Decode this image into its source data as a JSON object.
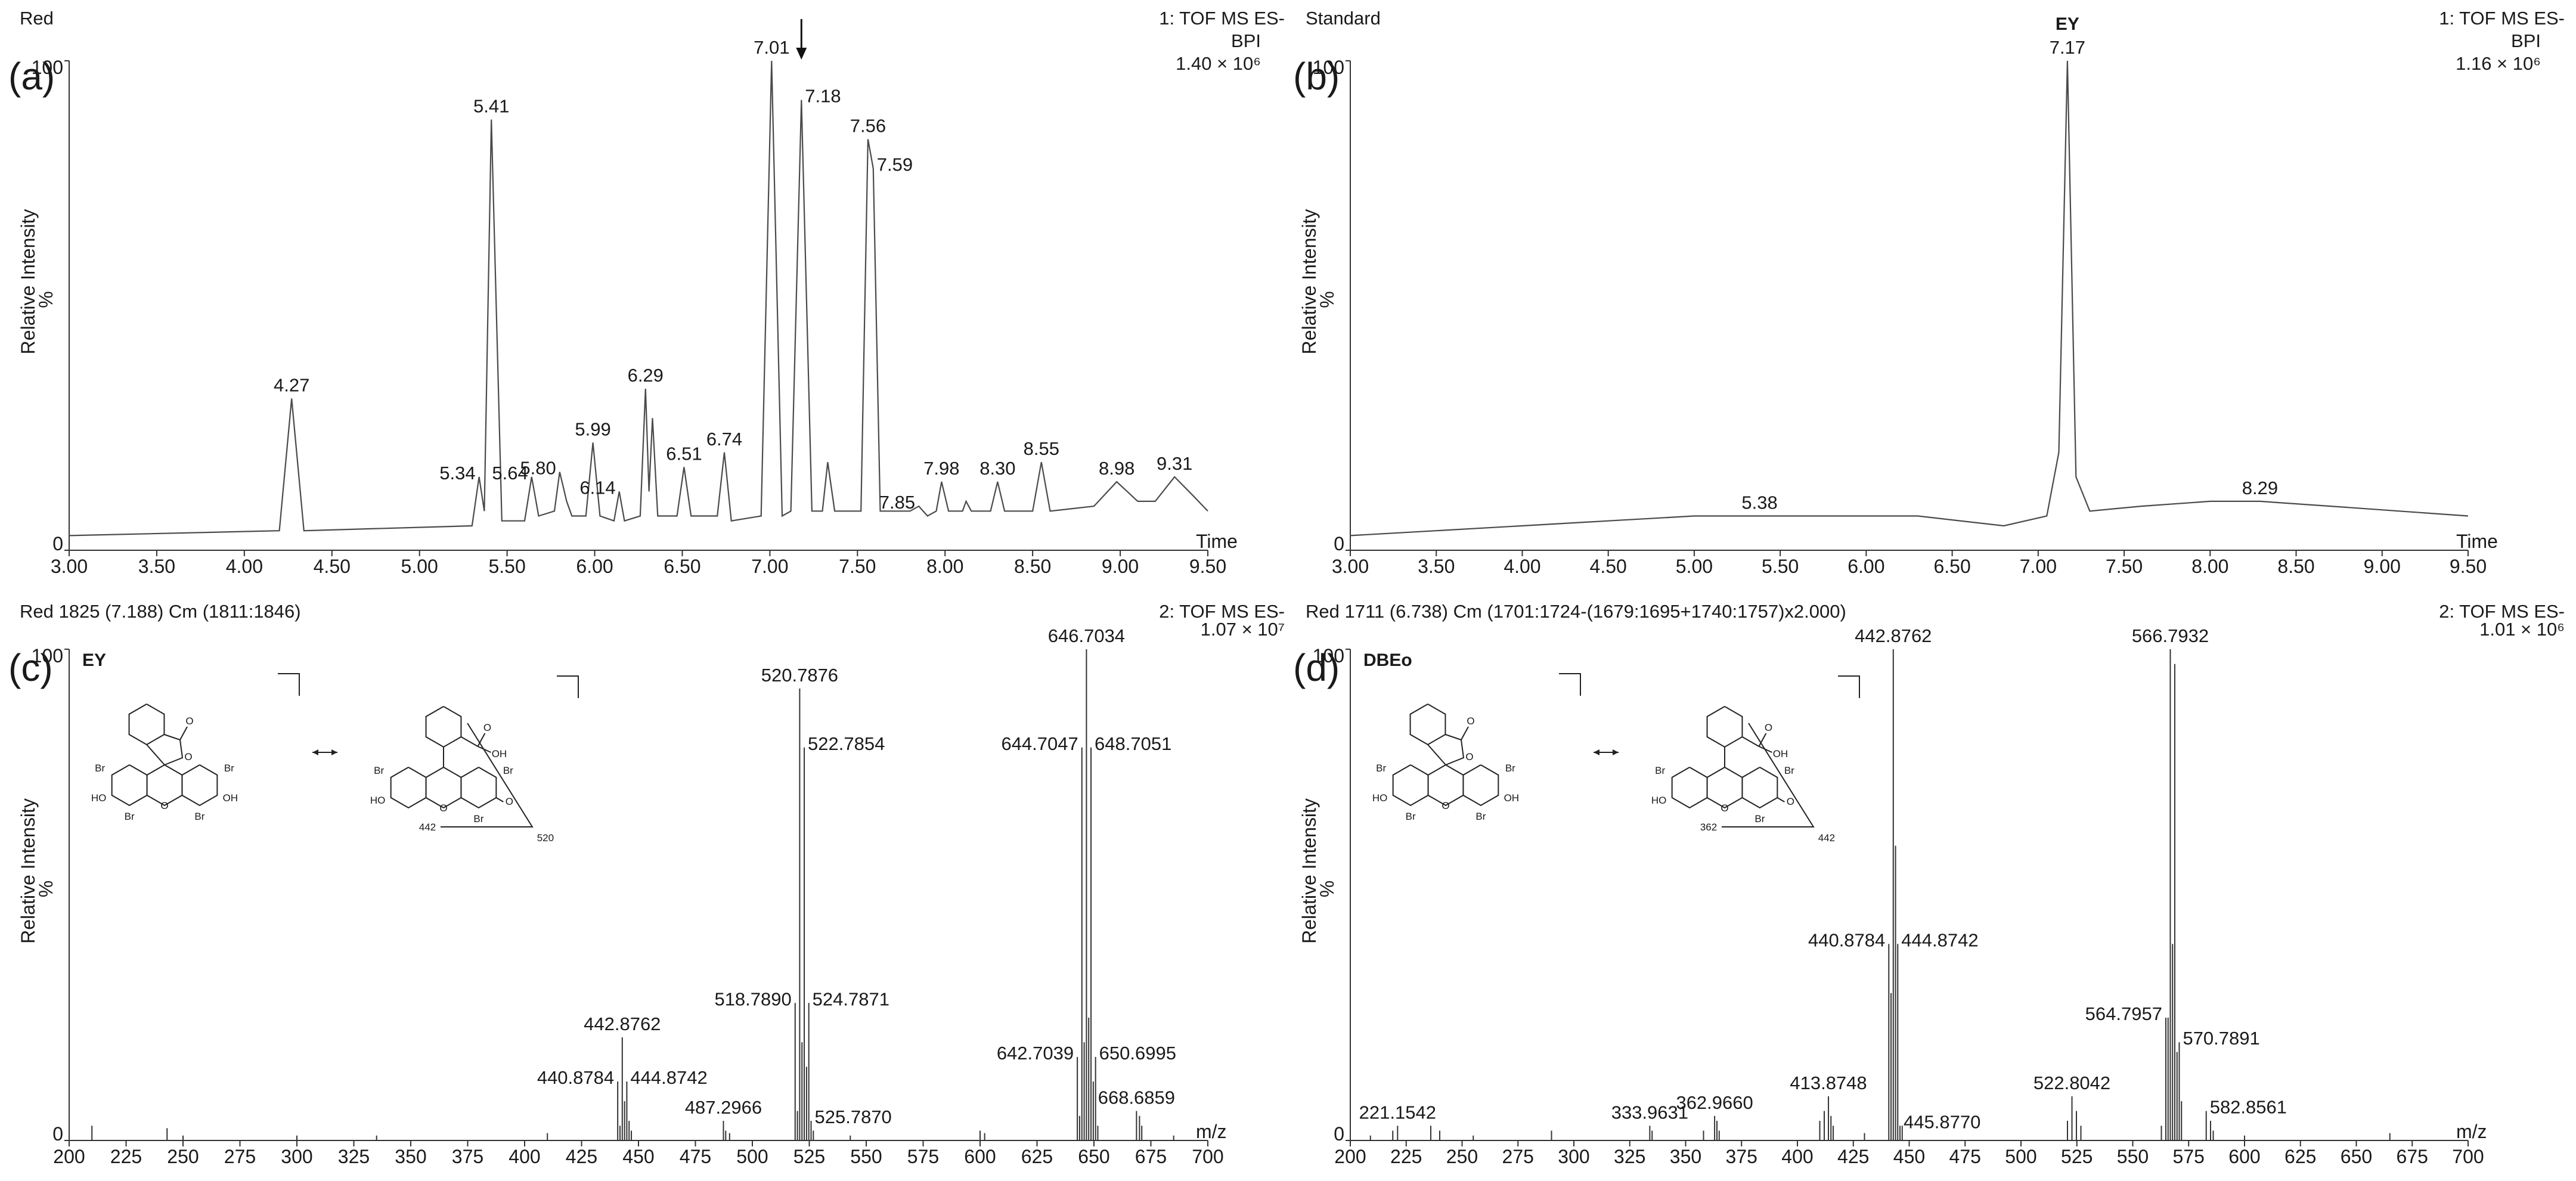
{
  "chart_data": [
    {
      "type": "line",
      "panel": "(a)",
      "title": "Red",
      "header_right": [
        "1: TOF MS ES-",
        "BPI",
        "1.40 × 10⁶"
      ],
      "ylabel": "Relative Intensity",
      "yunit": "%",
      "xlabel": "Time",
      "color": "#4a4a4a",
      "xlim": [
        3,
        9.5
      ],
      "ylim": [
        0,
        100
      ],
      "yticks": [
        0,
        100
      ],
      "xticks": [
        {
          "value": 3,
          "label": "3.00"
        },
        {
          "value": 3.5,
          "label": "3.50"
        },
        {
          "value": 4,
          "label": "4.00"
        },
        {
          "value": 4.5,
          "label": "4.50"
        },
        {
          "value": 5,
          "label": "5.00"
        },
        {
          "value": 5.5,
          "label": "5.50"
        },
        {
          "value": 6,
          "label": "6.00"
        },
        {
          "value": 6.5,
          "label": "6.50"
        },
        {
          "value": 7,
          "label": "7.00"
        },
        {
          "value": 7.5,
          "label": "7.50"
        },
        {
          "value": 8,
          "label": "8.00"
        },
        {
          "value": 8.5,
          "label": "8.50"
        },
        {
          "value": 9,
          "label": "9.00"
        },
        {
          "value": 9.5,
          "label": "9.50"
        }
      ],
      "x": [
        3.0,
        4.2,
        4.27,
        4.34,
        5.3,
        5.34,
        5.37,
        5.41,
        5.47,
        5.6,
        5.64,
        5.68,
        5.77,
        5.8,
        5.84,
        5.87,
        5.95,
        5.99,
        6.03,
        6.11,
        6.14,
        6.17,
        6.26,
        6.29,
        6.31,
        6.33,
        6.36,
        6.47,
        6.51,
        6.55,
        6.7,
        6.74,
        6.78,
        6.95,
        7.01,
        7.07,
        7.12,
        7.18,
        7.24,
        7.3,
        7.33,
        7.37,
        7.52,
        7.56,
        7.59,
        7.63,
        7.8,
        7.85,
        7.9,
        7.95,
        7.98,
        8.02,
        8.1,
        8.12,
        8.15,
        8.26,
        8.3,
        8.34,
        8.5,
        8.55,
        8.6,
        8.85,
        8.98,
        9.1,
        9.2,
        9.31,
        9.42,
        9.5
      ],
      "values": [
        3,
        4,
        31,
        4,
        5,
        15,
        8,
        88,
        6,
        6,
        15,
        7,
        8,
        16,
        10,
        7,
        7,
        22,
        7,
        6,
        12,
        6,
        7,
        33,
        12,
        27,
        7,
        7,
        17,
        7,
        7,
        20,
        6,
        7,
        100,
        7,
        8,
        92,
        8,
        8,
        18,
        8,
        8,
        84,
        78,
        8,
        8,
        9,
        7,
        8,
        14,
        8,
        8,
        10,
        8,
        8,
        14,
        8,
        8,
        18,
        8,
        9,
        14,
        10,
        10,
        15,
        11,
        8
      ],
      "peaks": [
        {
          "label": "4.27",
          "x": 4.27,
          "y": 31
        },
        {
          "label": "5.34",
          "x": 5.34,
          "y": 15
        },
        {
          "label": "5.41",
          "x": 5.41,
          "y": 88
        },
        {
          "label": "5.64",
          "x": 5.64,
          "y": 15
        },
        {
          "label": "5.80",
          "x": 5.8,
          "y": 16
        },
        {
          "label": "5.99",
          "x": 5.99,
          "y": 22
        },
        {
          "label": "6.14",
          "x": 6.14,
          "y": 12
        },
        {
          "label": "6.29",
          "x": 6.29,
          "y": 33
        },
        {
          "label": "6.51",
          "x": 6.51,
          "y": 17
        },
        {
          "label": "6.74",
          "x": 6.74,
          "y": 20
        },
        {
          "label": "7.01",
          "x": 7.01,
          "y": 100
        },
        {
          "label": "7.18",
          "x": 7.18,
          "y": 92,
          "arrow": true
        },
        {
          "label": "7.56",
          "x": 7.56,
          "y": 84
        },
        {
          "label": "7.59",
          "x": 7.59,
          "y": 78
        },
        {
          "label": "7.85",
          "x": 7.85,
          "y": 9
        },
        {
          "label": "7.98",
          "x": 7.98,
          "y": 14
        },
        {
          "label": "8.30",
          "x": 8.3,
          "y": 14
        },
        {
          "label": "8.55",
          "x": 8.55,
          "y": 18
        },
        {
          "label": "8.98",
          "x": 8.98,
          "y": 14
        },
        {
          "label": "9.31",
          "x": 9.31,
          "y": 15
        }
      ]
    },
    {
      "type": "line",
      "panel": "(b)",
      "title": "Standard",
      "header_right": [
        "1: TOF MS ES-",
        "BPI",
        "1.16 × 10⁶"
      ],
      "compound": "EY",
      "ylabel": "Relative Intensity",
      "yunit": "%",
      "xlabel": "Time",
      "color": "#4a4a4a",
      "xlim": [
        3,
        9.5
      ],
      "ylim": [
        0,
        100
      ],
      "yticks": [
        0,
        100
      ],
      "xticks": [
        {
          "value": 3,
          "label": "3.00"
        },
        {
          "value": 3.5,
          "label": "3.50"
        },
        {
          "value": 4,
          "label": "4.00"
        },
        {
          "value": 4.5,
          "label": "4.50"
        },
        {
          "value": 5,
          "label": "5.00"
        },
        {
          "value": 5.5,
          "label": "5.50"
        },
        {
          "value": 6,
          "label": "6.00"
        },
        {
          "value": 6.5,
          "label": "6.50"
        },
        {
          "value": 7,
          "label": "7.00"
        },
        {
          "value": 7.5,
          "label": "7.50"
        },
        {
          "value": 8,
          "label": "8.00"
        },
        {
          "value": 8.5,
          "label": "8.50"
        },
        {
          "value": 9,
          "label": "9.00"
        },
        {
          "value": 9.5,
          "label": "9.50"
        }
      ],
      "x": [
        3.0,
        3.5,
        4.0,
        4.5,
        5.0,
        5.38,
        5.8,
        6.3,
        6.8,
        7.05,
        7.12,
        7.17,
        7.22,
        7.3,
        7.6,
        8.0,
        8.29,
        8.7,
        9.1,
        9.5
      ],
      "values": [
        3,
        4,
        5,
        6,
        7,
        7,
        7,
        7,
        5,
        7,
        20,
        100,
        15,
        8,
        9,
        10,
        10,
        9,
        8,
        7
      ],
      "peaks": [
        {
          "label": "5.38",
          "x": 5.38,
          "y": 7
        },
        {
          "label": "7.17",
          "x": 7.17,
          "y": 100
        },
        {
          "label": "8.29",
          "x": 8.29,
          "y": 10
        }
      ]
    },
    {
      "type": "spectrum",
      "panel": "(c)",
      "title": "Red 1825 (7.188) Cm (1811:1846)",
      "header_right": [
        "2: TOF MS ES-",
        "1.07 × 10⁷"
      ],
      "compound": "EY",
      "ylabel": "Relative Intensity",
      "yunit": "%",
      "xlabel": "m/z",
      "color": "#333333",
      "xlim": [
        200,
        700
      ],
      "ylim": [
        0,
        100
      ],
      "yticks": [
        0,
        100
      ],
      "xticks": [
        200,
        225,
        250,
        275,
        300,
        325,
        350,
        375,
        400,
        425,
        450,
        475,
        500,
        525,
        550,
        575,
        600,
        625,
        650,
        675,
        700
      ],
      "x": [
        210,
        243,
        250,
        300,
        335,
        410,
        441.88,
        443.88,
        445.87,
        446.87,
        488.3,
        490,
        519.79,
        521.79,
        523.79,
        526.79,
        543,
        600,
        602,
        643.7,
        645.7,
        647.7,
        649.7,
        651.7,
        670,
        671,
        685
      ],
      "values": [
        3,
        2.5,
        1,
        1,
        1,
        1.5,
        3,
        8,
        4,
        2,
        2,
        1.5,
        6,
        20,
        15,
        2,
        1,
        2,
        1.5,
        5,
        20,
        25,
        12,
        3,
        5,
        3,
        1
      ],
      "peaks": [
        {
          "label": "440.8784",
          "x": 440.8784,
          "y": 12
        },
        {
          "label": "442.8762",
          "x": 442.8762,
          "y": 21
        },
        {
          "label": "444.8742",
          "x": 444.8742,
          "y": 12
        },
        {
          "label": "487.2966",
          "x": 487.2966,
          "y": 4
        },
        {
          "label": "518.7890",
          "x": 518.789,
          "y": 28
        },
        {
          "label": "520.7876",
          "x": 520.7876,
          "y": 92
        },
        {
          "label": "522.7854",
          "x": 522.7854,
          "y": 80
        },
        {
          "label": "524.7871",
          "x": 524.7871,
          "y": 28
        },
        {
          "label": "525.7870",
          "x": 525.787,
          "y": 4
        },
        {
          "label": "642.7039",
          "x": 642.7039,
          "y": 17
        },
        {
          "label": "644.7047",
          "x": 644.7047,
          "y": 80
        },
        {
          "label": "646.7034",
          "x": 646.7034,
          "y": 100
        },
        {
          "label": "648.7051",
          "x": 648.7051,
          "y": 80
        },
        {
          "label": "650.6995",
          "x": 650.6995,
          "y": 17
        },
        {
          "label": "668.6859",
          "x": 668.6859,
          "y": 6
        }
      ],
      "structure_labels": {
        "left": [
          "O",
          "O",
          "Br",
          "Br",
          "HO",
          "O",
          "OH",
          "Br",
          "Br"
        ],
        "right": [
          "O",
          "OH",
          "Br",
          "Br",
          "HO",
          "O",
          "O",
          "Br",
          "442",
          "520"
        ]
      }
    },
    {
      "type": "spectrum",
      "panel": "(d)",
      "title": "Red 1711 (6.738) Cm (1701:1724-(1679:1695+1740:1757)x2.000)",
      "header_right": [
        "2: TOF MS ES-",
        "1.01 × 10⁶"
      ],
      "compound": "DBEo",
      "ylabel": "Relative Intensity",
      "yunit": "%",
      "xlabel": "m/z",
      "color": "#333333",
      "xlim": [
        200,
        700
      ],
      "ylim": [
        0,
        100
      ],
      "yticks": [
        0,
        100
      ],
      "xticks": [
        200,
        225,
        250,
        275,
        300,
        325,
        350,
        375,
        400,
        425,
        450,
        475,
        500,
        525,
        550,
        575,
        600,
        625,
        650,
        675,
        700
      ],
      "x": [
        209,
        219,
        236,
        240,
        255,
        290,
        335,
        358,
        364,
        365,
        410,
        412,
        415,
        416,
        430,
        441.88,
        443.88,
        446.87,
        520.8,
        524.8,
        526.8,
        562.8,
        565.8,
        567.8,
        568.79,
        569.8,
        571.8,
        584.8,
        586,
        600,
        665
      ],
      "values": [
        1,
        2,
        3,
        2,
        1,
        2,
        2,
        2,
        4,
        2,
        4,
        6,
        5,
        3,
        1.5,
        30,
        60,
        3,
        4,
        6,
        3,
        3,
        25,
        40,
        97,
        18,
        8,
        4,
        2,
        1,
        1.5
      ],
      "peaks": [
        {
          "label": "221.1542",
          "x": 221.1542,
          "y": 3
        },
        {
          "label": "333.9631",
          "x": 333.9631,
          "y": 3
        },
        {
          "label": "362.9660",
          "x": 362.966,
          "y": 5
        },
        {
          "label": "413.8748",
          "x": 413.8748,
          "y": 9
        },
        {
          "label": "440.8784",
          "x": 440.8784,
          "y": 40
        },
        {
          "label": "442.8762",
          "x": 442.8762,
          "y": 100
        },
        {
          "label": "444.8742",
          "x": 444.8742,
          "y": 40
        },
        {
          "label": "445.8770",
          "x": 445.877,
          "y": 3
        },
        {
          "label": "522.8042",
          "x": 522.8042,
          "y": 9
        },
        {
          "label": "564.7957",
          "x": 564.7957,
          "y": 25
        },
        {
          "label": "566.7932",
          "x": 566.7932,
          "y": 100
        },
        {
          "label": "570.7891",
          "x": 570.7891,
          "y": 20
        },
        {
          "label": "582.8561",
          "x": 582.8561,
          "y": 6
        }
      ],
      "structure_labels": {
        "left": [
          "O",
          "O",
          "Br",
          "Br",
          "HO",
          "O",
          "OH",
          "Br",
          "Br"
        ],
        "right": [
          "O",
          "OH",
          "Br",
          "Br",
          "HO",
          "O",
          "O",
          "Br",
          "362",
          "442"
        ]
      }
    }
  ]
}
